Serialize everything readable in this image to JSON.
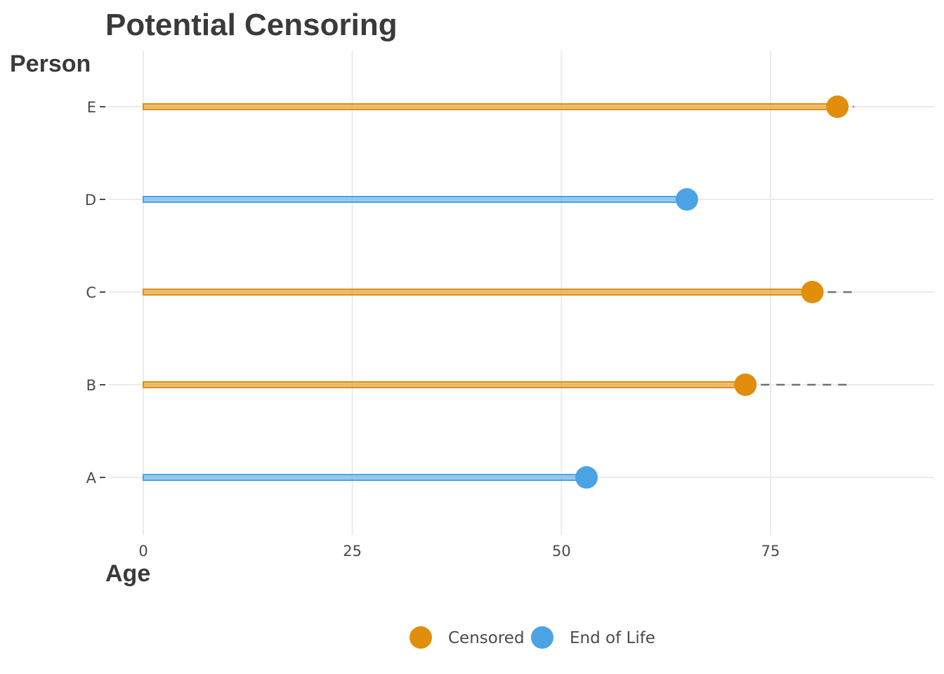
{
  "chart_data": {
    "type": "lollipop",
    "title": "Potential Censoring",
    "xlabel": "Age",
    "ylabel": "Person",
    "xlim": [
      0,
      94
    ],
    "x_ticks": [
      0,
      25,
      50,
      75
    ],
    "x_tick_labels": [
      "0",
      "25",
      "50",
      "75"
    ],
    "grid": true,
    "legend_position": "bottom",
    "colors": {
      "Censored": "#E08E0B",
      "End of Life": "#4BA3E3",
      "dashed": "#707070"
    },
    "legend": [
      {
        "label": "Censored",
        "color": "#E08E0B"
      },
      {
        "label": "End of Life",
        "color": "#4BA3E3"
      }
    ],
    "persons": [
      {
        "name": "A",
        "age": 53,
        "status": "End of Life",
        "potential_age": null
      },
      {
        "name": "B",
        "age": 72,
        "status": "Censored",
        "potential_age": 84.5
      },
      {
        "name": "C",
        "age": 80,
        "status": "Censored",
        "potential_age": 85
      },
      {
        "name": "D",
        "age": 65,
        "status": "End of Life",
        "potential_age": null
      },
      {
        "name": "E",
        "age": 83,
        "status": "Censored",
        "potential_age": 85
      }
    ]
  }
}
